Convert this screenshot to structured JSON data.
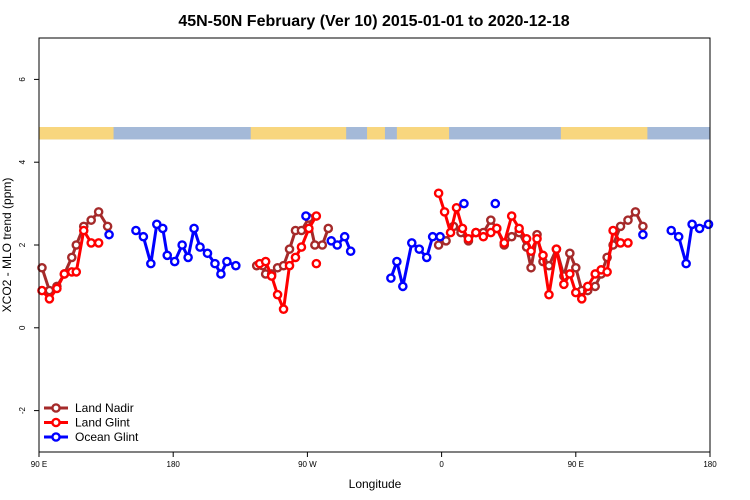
{
  "chart_data": {
    "type": "line",
    "title": "45N-50N February (Ver 10)   2015-01-01 to 2020-12-18",
    "xlabel": "Longitude",
    "ylabel": "XCO2 - MLO trend (ppm)",
    "xlim": [
      90,
      540
    ],
    "ylim": [
      -3,
      7
    ],
    "x_ticks": [
      {
        "value": 90,
        "label": "90 E"
      },
      {
        "value": 180,
        "label": "180"
      },
      {
        "value": 270,
        "label": "90 W"
      },
      {
        "value": 360,
        "label": "0"
      },
      {
        "value": 450,
        "label": "90 E"
      },
      {
        "value": 540,
        "label": "180"
      }
    ],
    "y_ticks": [
      {
        "value": -2,
        "label": "-2"
      },
      {
        "value": 0,
        "label": "0"
      },
      {
        "value": 2,
        "label": "2"
      },
      {
        "value": 4,
        "label": "4"
      },
      {
        "value": 6,
        "label": "6"
      }
    ],
    "legend_position": "bottom-left",
    "grid": false,
    "land_mask": {
      "y_range": [
        4.55,
        4.85
      ],
      "land_color": "#F8D67E",
      "ocean_color": "#A4B9D8",
      "land_segments": [
        [
          90,
          140
        ],
        [
          232,
          296
        ],
        [
          310,
          322
        ],
        [
          330,
          365
        ],
        [
          440,
          498
        ]
      ]
    },
    "series": [
      {
        "name": "Land Nadir",
        "color": "#A52A2A",
        "segments": [
          [
            [
              92,
              1.45
            ],
            [
              97,
              0.9
            ],
            [
              102,
              1.0
            ],
            [
              107,
              1.3
            ],
            [
              112,
              1.7
            ],
            [
              115,
              2.0
            ],
            [
              120,
              2.45
            ],
            [
              125,
              2.6
            ],
            [
              130,
              2.8
            ],
            [
              136,
              2.45
            ]
          ],
          [
            [
              236,
              1.5
            ],
            [
              240,
              1.5
            ],
            [
              242,
              1.3
            ],
            [
              246,
              1.3
            ],
            [
              250,
              1.45
            ],
            [
              254,
              1.5
            ],
            [
              258,
              1.9
            ],
            [
              262,
              2.35
            ],
            [
              266,
              2.35
            ],
            [
              271,
              2.65
            ],
            [
              275,
              2.0
            ],
            [
              280,
              2.0
            ],
            [
              284,
              2.4
            ]
          ],
          [
            [
              358,
              2.0
            ],
            [
              363,
              2.1
            ],
            [
              368,
              2.45
            ],
            [
              373,
              2.3
            ],
            [
              378,
              2.1
            ],
            [
              383,
              2.3
            ],
            [
              388,
              2.3
            ],
            [
              393,
              2.6
            ],
            [
              397,
              2.4
            ],
            [
              402,
              2.0
            ],
            [
              407,
              2.2
            ],
            [
              412,
              2.3
            ],
            [
              417,
              1.95
            ],
            [
              420,
              1.45
            ],
            [
              424,
              2.25
            ],
            [
              428,
              1.6
            ],
            [
              432,
              1.5
            ],
            [
              437,
              1.9
            ],
            [
              442,
              1.25
            ],
            [
              446,
              1.8
            ],
            [
              450,
              1.45
            ],
            [
              454,
              0.9
            ],
            [
              458,
              0.9
            ],
            [
              463,
              1.0
            ],
            [
              467,
              1.3
            ],
            [
              471,
              1.7
            ],
            [
              475,
              2.0
            ],
            [
              480,
              2.45
            ],
            [
              485,
              2.6
            ],
            [
              490,
              2.8
            ],
            [
              495,
              2.45
            ]
          ]
        ]
      },
      {
        "name": "Land Glint",
        "color": "#FF0000",
        "segments": [
          [
            [
              92,
              0.9
            ],
            [
              97,
              0.7
            ],
            [
              102,
              0.95
            ],
            [
              107,
              1.3
            ],
            [
              112,
              1.35
            ],
            [
              115,
              1.35
            ],
            [
              120,
              2.35
            ],
            [
              125,
              2.05
            ],
            [
              130,
              2.05
            ]
          ],
          [
            [
              238,
              1.55
            ],
            [
              242,
              1.6
            ],
            [
              246,
              1.25
            ],
            [
              250,
              0.8
            ],
            [
              254,
              0.45
            ],
            [
              258,
              1.5
            ],
            [
              262,
              1.7
            ],
            [
              266,
              1.95
            ],
            [
              271,
              2.4
            ],
            [
              276,
              2.7
            ]
          ],
          [
            [
              276,
              1.55
            ]
          ],
          [
            [
              358,
              3.25
            ],
            [
              362,
              2.8
            ],
            [
              366,
              2.3
            ],
            [
              370,
              2.9
            ],
            [
              374,
              2.4
            ],
            [
              378,
              2.15
            ],
            [
              383,
              2.3
            ],
            [
              388,
              2.2
            ],
            [
              393,
              2.3
            ],
            [
              397,
              2.4
            ],
            [
              402,
              2.05
            ],
            [
              407,
              2.7
            ],
            [
              412,
              2.4
            ],
            [
              417,
              2.15
            ],
            [
              420,
              1.85
            ],
            [
              424,
              2.15
            ],
            [
              428,
              1.75
            ],
            [
              432,
              0.8
            ],
            [
              437,
              1.9
            ],
            [
              442,
              1.05
            ],
            [
              446,
              1.3
            ],
            [
              450,
              0.85
            ],
            [
              454,
              0.7
            ],
            [
              458,
              1.0
            ],
            [
              463,
              1.3
            ],
            [
              467,
              1.4
            ],
            [
              471,
              1.35
            ],
            [
              475,
              2.35
            ],
            [
              480,
              2.05
            ],
            [
              485,
              2.05
            ]
          ]
        ]
      },
      {
        "name": "Ocean Glint",
        "color": "#0000FF",
        "segments": [
          [
            [
              137,
              2.25
            ]
          ],
          [
            [
              155,
              2.35
            ],
            [
              160,
              2.2
            ],
            [
              165,
              1.55
            ],
            [
              169,
              2.5
            ],
            [
              173,
              2.4
            ],
            [
              176,
              1.75
            ],
            [
              181,
              1.6
            ],
            [
              186,
              2.0
            ],
            [
              190,
              1.7
            ],
            [
              194,
              2.4
            ],
            [
              198,
              1.95
            ],
            [
              203,
              1.8
            ],
            [
              208,
              1.55
            ],
            [
              212,
              1.3
            ],
            [
              216,
              1.6
            ],
            [
              222,
              1.5
            ]
          ],
          [
            [
              269,
              2.7
            ]
          ],
          [
            [
              286,
              2.1
            ],
            [
              290,
              2.0
            ],
            [
              295,
              2.2
            ],
            [
              299,
              1.85
            ]
          ],
          [
            [
              326,
              1.2
            ],
            [
              330,
              1.6
            ],
            [
              334,
              1.0
            ],
            [
              340,
              2.05
            ],
            [
              345,
              1.9
            ],
            [
              350,
              1.7
            ],
            [
              354,
              2.2
            ],
            [
              359,
              2.2
            ]
          ],
          [
            [
              375,
              3.0
            ]
          ],
          [
            [
              396,
              3.0
            ]
          ],
          [
            [
              495,
              2.25
            ]
          ],
          [
            [
              514,
              2.35
            ],
            [
              519,
              2.2
            ],
            [
              524,
              1.55
            ],
            [
              528,
              2.5
            ],
            [
              533,
              2.4
            ],
            [
              539,
              2.5
            ]
          ]
        ]
      }
    ]
  }
}
